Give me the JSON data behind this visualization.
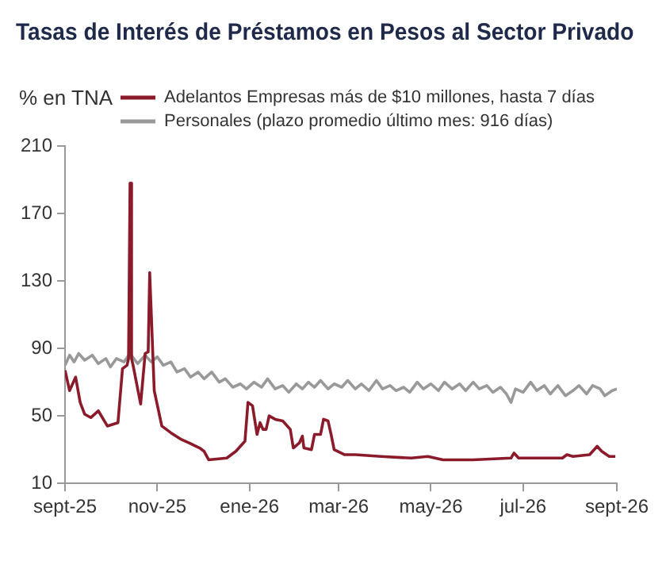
{
  "chart_data": {
    "type": "line",
    "title": "Tasas de Interés de Préstamos en Pesos al Sector Privado",
    "ylabel": "% en TNA",
    "xlim": [
      "2025-09",
      "2026-09"
    ],
    "xticks": [
      {
        "value": "2025-09",
        "label": "sept-25"
      },
      {
        "value": "2025-11",
        "label": "nov-25"
      },
      {
        "value": "2026-01",
        "label": "ene-26"
      },
      {
        "value": "2026-03",
        "label": "mar-26"
      },
      {
        "value": "2026-05",
        "label": "may-26"
      },
      {
        "value": "2026-07",
        "label": "jul-26"
      },
      {
        "value": "2026-09",
        "label": "sept-26"
      }
    ],
    "ylim": [
      10,
      210
    ],
    "yticks": [
      10,
      50,
      90,
      130,
      170,
      210
    ],
    "grid": false,
    "legend": "top",
    "marker": "none",
    "line_style": "solid",
    "series": [
      {
        "name": "Adelantos Empresas más de $10 millones, hasta 7 días",
        "color": "#8b1a2b",
        "x": [
          "2025-09-01",
          "2025-09-04",
          "2025-09-08",
          "2025-09-11",
          "2025-09-14",
          "2025-09-18",
          "2025-09-23",
          "2025-09-29",
          "2025-10-06",
          "2025-10-09",
          "2025-10-12",
          "2025-10-13",
          "2025-10-14",
          "2025-10-15",
          "2025-10-16",
          "2025-10-21",
          "2025-10-24",
          "2025-10-26",
          "2025-10-27",
          "2025-10-29",
          "2025-10-30",
          "2025-11-04",
          "2025-11-10",
          "2025-11-17",
          "2025-11-22",
          "2025-11-29",
          "2025-12-02",
          "2025-12-05",
          "2025-12-17",
          "2025-12-23",
          "2025-12-29",
          "2025-12-31",
          "2026-01-03",
          "2026-01-06",
          "2026-01-08",
          "2026-01-10",
          "2026-01-12",
          "2026-01-14",
          "2026-01-18",
          "2026-01-23",
          "2026-01-28",
          "2026-01-30",
          "2026-02-03",
          "2026-02-05",
          "2026-02-06",
          "2026-02-11",
          "2026-02-13",
          "2026-02-17",
          "2026-02-19",
          "2026-02-22",
          "2026-02-24",
          "2026-02-26",
          "2026-03-05",
          "2026-03-12",
          "2026-03-29",
          "2026-04-18",
          "2026-04-29",
          "2026-05-09",
          "2026-05-29",
          "2026-06-23",
          "2026-06-25",
          "2026-06-28",
          "2026-07-27",
          "2026-07-30",
          "2026-08-03",
          "2026-08-14",
          "2026-08-19",
          "2026-08-22",
          "2026-08-27",
          "2026-08-31"
        ],
        "values": [
          77,
          65,
          73,
          58,
          51,
          49,
          53,
          44,
          46,
          78,
          80,
          84,
          188,
          84,
          80,
          57,
          87,
          88,
          135,
          88,
          65,
          44,
          40,
          36,
          34,
          31,
          29,
          24,
          25,
          29,
          35,
          58,
          56,
          39,
          46,
          42,
          42,
          50,
          48,
          47,
          42,
          31,
          34,
          38,
          31,
          30,
          39,
          39,
          48,
          47,
          39,
          30,
          27,
          27,
          26,
          25,
          26,
          24,
          24,
          25,
          28,
          25,
          25,
          27,
          26,
          27,
          32,
          29,
          26,
          26
        ]
      },
      {
        "name": "Personales (plazo promedio último mes: 916 días)",
        "color": "#999999",
        "x": [
          "2025-09-01",
          "2025-09-04",
          "2025-09-07",
          "2025-09-10",
          "2025-09-14",
          "2025-09-19",
          "2025-09-23",
          "2025-09-28",
          "2025-10-01",
          "2025-10-05",
          "2025-10-10",
          "2025-10-14",
          "2025-10-19",
          "2025-10-24",
          "2025-10-28",
          "2025-11-01",
          "2025-11-05",
          "2025-11-10",
          "2025-11-14",
          "2025-11-19",
          "2025-11-23",
          "2025-11-28",
          "2025-12-02",
          "2025-12-07",
          "2025-12-12",
          "2025-12-16",
          "2025-12-21",
          "2025-12-26",
          "2025-12-30",
          "2026-01-04",
          "2026-01-09",
          "2026-01-13",
          "2026-01-18",
          "2026-01-23",
          "2026-01-27",
          "2026-02-01",
          "2026-02-05",
          "2026-02-09",
          "2026-02-13",
          "2026-02-17",
          "2026-02-22",
          "2026-02-26",
          "2026-03-03",
          "2026-03-07",
          "2026-03-12",
          "2026-03-16",
          "2026-03-21",
          "2026-03-26",
          "2026-03-30",
          "2026-04-04",
          "2026-04-08",
          "2026-04-13",
          "2026-04-17",
          "2026-04-22",
          "2026-04-26",
          "2026-05-01",
          "2026-05-06",
          "2026-05-10",
          "2026-05-15",
          "2026-05-20",
          "2026-05-24",
          "2026-05-29",
          "2026-06-02",
          "2026-06-07",
          "2026-06-11",
          "2026-06-16",
          "2026-06-20",
          "2026-06-23",
          "2026-06-26",
          "2026-07-01",
          "2026-07-06",
          "2026-07-10",
          "2026-07-15",
          "2026-07-19",
          "2026-07-24",
          "2026-07-29",
          "2026-08-03",
          "2026-08-07",
          "2026-08-12",
          "2026-08-16",
          "2026-08-21",
          "2026-08-24",
          "2026-08-29",
          "2026-09-01"
        ],
        "values": [
          80,
          86,
          82,
          87,
          83,
          86,
          81,
          84,
          79,
          84,
          82,
          87,
          81,
          86,
          82,
          85,
          80,
          82,
          76,
          78,
          73,
          76,
          72,
          76,
          70,
          72,
          67,
          69,
          66,
          70,
          67,
          72,
          66,
          68,
          64,
          69,
          66,
          70,
          67,
          71,
          66,
          69,
          67,
          71,
          66,
          69,
          65,
          71,
          66,
          68,
          65,
          67,
          64,
          70,
          66,
          69,
          65,
          70,
          66,
          69,
          65,
          70,
          66,
          68,
          64,
          67,
          63,
          58,
          66,
          64,
          70,
          65,
          68,
          63,
          68,
          62,
          65,
          68,
          63,
          68,
          66,
          62,
          65,
          66
        ]
      }
    ]
  }
}
